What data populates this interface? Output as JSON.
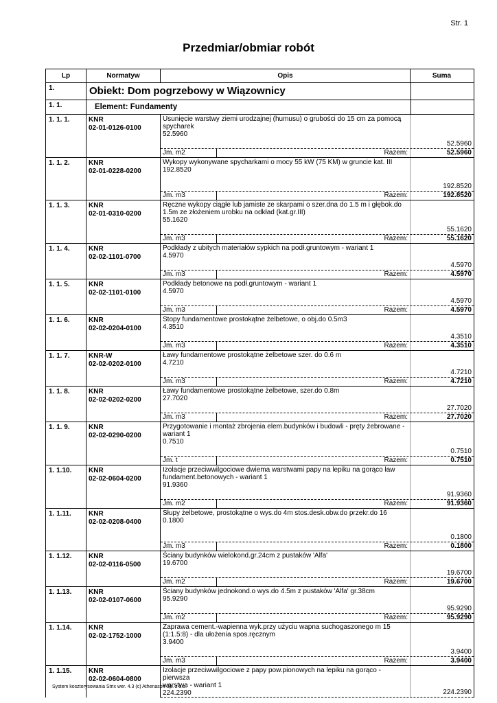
{
  "page_number": "Str. 1",
  "title": "Przedmiar/obmiar robót",
  "headers": {
    "lp": "Lp",
    "normatyw": "Normatyw",
    "opis": "Opis",
    "suma": "Suma"
  },
  "object": {
    "lp": "1.",
    "label": "Obiekt: Dom pogrzebowy w Wiązownicy"
  },
  "element": {
    "lp": "1. 1.",
    "label": "Element: Fundamenty"
  },
  "razem_label": "Razem:",
  "items": [
    {
      "lp": "1. 1. 1.",
      "norm1": "KNR",
      "norm2": "02-01-0126-0100",
      "opis": [
        "Usunięcie warstwy ziemi urodzajnej (humusu) o grubości do 15 cm za pomocą",
        "spycharek",
        "52.5960"
      ],
      "value": "52.5960",
      "jm": "Jm. m2",
      "total": "52.5960"
    },
    {
      "lp": "1. 1. 2.",
      "norm1": "KNR",
      "norm2": "02-01-0228-0200",
      "opis": [
        "Wykopy wykonywane spycharkami o mocy 55 kW (75 KM) w gruncie kat. III",
        "192.8520"
      ],
      "value": "192.8520",
      "jm": "Jm. m3",
      "total": "192.8520",
      "tall": true
    },
    {
      "lp": "1. 1. 3.",
      "norm1": "KNR",
      "norm2": "02-01-0310-0200",
      "opis": [
        "Ręczne wykopy ciągłe lub jamiste ze skarpami o szer.dna do 1.5 m i głębok.do",
        "1.5m ze złożeniem urobku na odkład (kat.gr.III)",
        "55.1620"
      ],
      "value": "55.1620",
      "jm": "Jm. m3",
      "total": "55.1620"
    },
    {
      "lp": "1. 1. 4.",
      "norm1": "KNR",
      "norm2": "02-02-1101-0700",
      "opis": [
        "Podkłady z ubitych materiałów sypkich na podł.gruntowym - wariant 1",
        "4.5970"
      ],
      "value": "4.5970",
      "jm": "Jm. m3",
      "total": "4.5970"
    },
    {
      "lp": "1. 1. 5.",
      "norm1": "KNR",
      "norm2": "02-02-1101-0100",
      "opis": [
        "Podkłady betonowe na podł.gruntowym - wariant 1",
        "4.5970"
      ],
      "value": "4.5970",
      "jm": "Jm. m3",
      "total": "4.5970"
    },
    {
      "lp": "1. 1. 6.",
      "norm1": "KNR",
      "norm2": "02-02-0204-0100",
      "opis": [
        "Stopy fundamentowe prostokątne żelbetowe, o obj.do 0.5m3",
        "4.3510"
      ],
      "value": "4.3510",
      "jm": "Jm. m3",
      "total": "4.3510"
    },
    {
      "lp": "1. 1. 7.",
      "norm1": "KNR-W",
      "norm2": "02-02-0202-0100",
      "opis": [
        "Ławy fundamentowe prostokątne żelbetowe szer. do 0.6 m",
        "4.7210"
      ],
      "value": "4.7210",
      "jm": "Jm. m3",
      "total": "4.7210"
    },
    {
      "lp": "1. 1. 8.",
      "norm1": "KNR",
      "norm2": "02-02-0202-0200",
      "opis": [
        "Ławy fundamentowe prostokątne żelbetowe, szer.do 0.8m",
        "27.7020"
      ],
      "value": "27.7020",
      "jm": "Jm. m3",
      "total": "27.7020"
    },
    {
      "lp": "1. 1. 9.",
      "norm1": "KNR",
      "norm2": "02-02-0290-0200",
      "opis": [
        "Przygotowanie i montaż zbrojenia elem.budynków i budowli - pręty żebrowane -",
        "wariant 1",
        "0.7510"
      ],
      "value": "0.7510",
      "jm": "Jm. t",
      "total": "0.7510"
    },
    {
      "lp": "1. 1.10.",
      "norm1": "KNR",
      "norm2": "02-02-0604-0200",
      "opis": [
        "Izolacje przeciwwilgociowe dwiema warstwami papy na lepiku na gorąco ław",
        "fundament.betonowych - wariant 1",
        "91.9360"
      ],
      "value": "91.9360",
      "jm": "Jm. m2",
      "total": "91.9360"
    },
    {
      "lp": "1. 1.11.",
      "norm1": "KNR",
      "norm2": "02-02-0208-0400",
      "opis": [
        "Słupy żelbetowe, prostokątne o wys.do 4m stos.desk.obw.do przekr.do 16",
        "0.1800"
      ],
      "value": "0.1800",
      "jm": "Jm. m3",
      "total": "0.1800",
      "tall": true
    },
    {
      "lp": "1. 1.12.",
      "norm1": "KNR",
      "norm2": "02-02-0116-0500",
      "opis": [
        "Ściany budynków wielokond.gr.24cm z pustaków 'Alfa'",
        "19.6700"
      ],
      "value": "19.6700",
      "jm": "Jm. m2",
      "total": "19.6700"
    },
    {
      "lp": "1. 1.13.",
      "norm1": "KNR",
      "norm2": "02-02-0107-0600",
      "opis": [
        "Ściany budynków jednokond.o wys.do 4.5m z pustaków 'Alfa' gr.38cm",
        "95.9290"
      ],
      "value": "95.9290",
      "jm": "Jm. m2",
      "total": "95.9290"
    },
    {
      "lp": "1. 1.14.",
      "norm1": "KNR",
      "norm2": "02-02-1752-1000",
      "opis": [
        "Zaprawa cement.-wapienna wyk.przy użyciu wapna suchogaszonego m 15",
        "(1:1.5:8) - dla ułożenia spos.ręcznym",
        "3.9400"
      ],
      "value": "3.9400",
      "jm": "Jm. m3",
      "total": "3.9400"
    },
    {
      "lp": "1. 1.15.",
      "norm1": "KNR",
      "norm2": "02-02-0604-0800",
      "opis": [
        "Izolacje przeciwwilgociowe z papy pow.pionowych na lepiku na gorąco - pierwsza",
        "warstwa - wariant 1",
        "224.2390"
      ],
      "value": "224.2390"
    }
  ],
  "footer": "System kosztorysowania Strix wer. 4.3 (c) Athenasoft Sp. z o.o."
}
